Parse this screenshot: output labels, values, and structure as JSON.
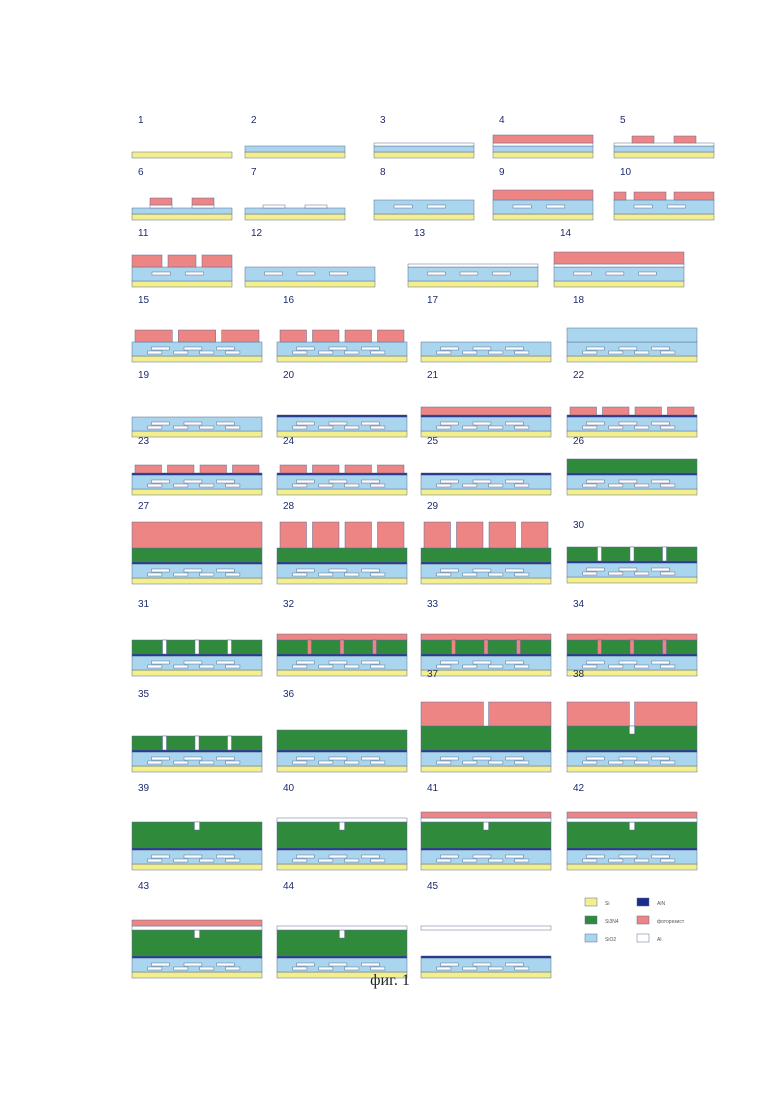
{
  "figure": {
    "caption": "фиг. 1"
  },
  "colors": {
    "si": "#f4ef8e",
    "sio2": "#a9d6ee",
    "al": "#ffffff",
    "resist": "#ee8585",
    "sin": "#2f8a3c",
    "aln": "#1b2d8c",
    "outline": "#5a6a90"
  },
  "legend": [
    {
      "key": "si",
      "label": "Si"
    },
    {
      "key": "aln",
      "label": "AlN"
    },
    {
      "key": "sin",
      "label": "Si3N4"
    },
    {
      "key": "resist",
      "label": "фоторезист"
    },
    {
      "key": "sio2",
      "label": "SiO2"
    },
    {
      "key": "al",
      "label": "Al"
    }
  ],
  "steps": [
    {
      "n": "1",
      "label": "1"
    },
    {
      "n": "2",
      "label": "2"
    },
    {
      "n": "3",
      "label": "3"
    },
    {
      "n": "4",
      "label": "4"
    },
    {
      "n": "5",
      "label": "5"
    },
    {
      "n": "6",
      "label": "6"
    },
    {
      "n": "7",
      "label": "7"
    },
    {
      "n": "8",
      "label": "8"
    },
    {
      "n": "9",
      "label": "9"
    },
    {
      "n": "10",
      "label": "10"
    },
    {
      "n": "11",
      "label": "11"
    },
    {
      "n": "12",
      "label": "12"
    },
    {
      "n": "13",
      "label": "13"
    },
    {
      "n": "14",
      "label": "14"
    },
    {
      "n": "15",
      "label": "15"
    },
    {
      "n": "16",
      "label": "16"
    },
    {
      "n": "17",
      "label": "17"
    },
    {
      "n": "18",
      "label": "18"
    },
    {
      "n": "19",
      "label": "19"
    },
    {
      "n": "20",
      "label": "20"
    },
    {
      "n": "21",
      "label": "21"
    },
    {
      "n": "22",
      "label": "22"
    },
    {
      "n": "23",
      "label": "23"
    },
    {
      "n": "24",
      "label": "24"
    },
    {
      "n": "25",
      "label": "25"
    },
    {
      "n": "26",
      "label": "26"
    },
    {
      "n": "27",
      "label": "27"
    },
    {
      "n": "28",
      "label": "28"
    },
    {
      "n": "29",
      "label": "29"
    },
    {
      "n": "30",
      "label": "30"
    },
    {
      "n": "31",
      "label": "31"
    },
    {
      "n": "32",
      "label": "32"
    },
    {
      "n": "33",
      "label": "33"
    },
    {
      "n": "34",
      "label": "34"
    },
    {
      "n": "35",
      "label": "35"
    },
    {
      "n": "36",
      "label": "36"
    },
    {
      "n": "37",
      "label": "37"
    },
    {
      "n": "38",
      "label": "38"
    },
    {
      "n": "39",
      "label": "39"
    },
    {
      "n": "40",
      "label": "40"
    },
    {
      "n": "41",
      "label": "41"
    },
    {
      "n": "42",
      "label": "42"
    },
    {
      "n": "43",
      "label": "43"
    },
    {
      "n": "44",
      "label": "44"
    },
    {
      "n": "45",
      "label": "45"
    }
  ]
}
